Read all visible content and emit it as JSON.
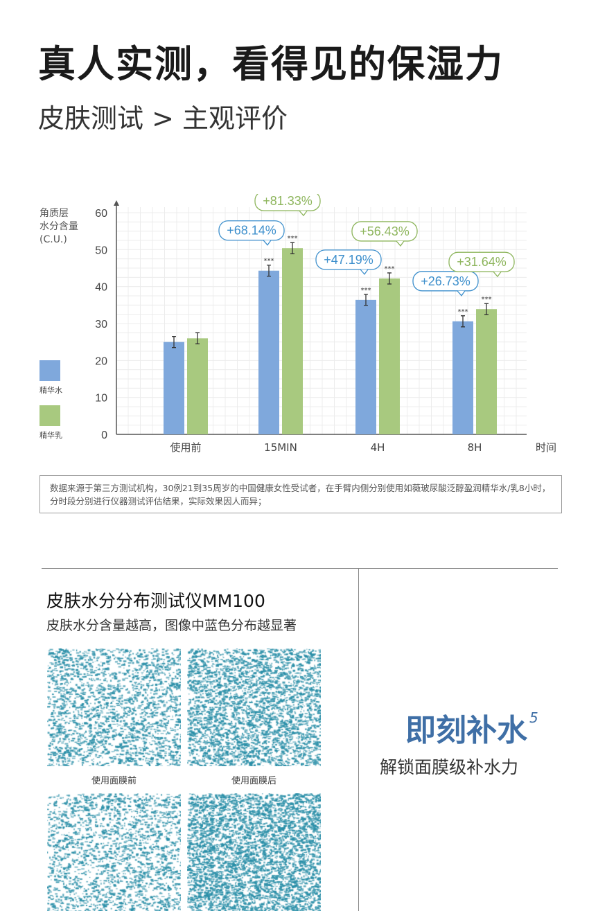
{
  "header": {
    "title": "真人实测，看得见的保湿力",
    "subtitle": "皮肤测试 > 主观评价"
  },
  "chart_data": {
    "type": "bar",
    "ylabel": "角质层\n水分含量\n(C.U.)",
    "ylabel_lines": [
      "角质层",
      "水分含量",
      "(C.U.)"
    ],
    "xlabel": "时间",
    "ylim": [
      0,
      60
    ],
    "yticks": [
      0,
      10,
      20,
      30,
      40,
      50,
      60
    ],
    "grid": true,
    "legend_placement": "left",
    "categories": [
      "使用前",
      "15MIN",
      "4H",
      "8H"
    ],
    "series": [
      {
        "name": "精华水",
        "color": "#7fa8dc",
        "values": [
          25,
          44.3,
          36.4,
          30.6
        ],
        "labels": [
          "",
          "+68.14%",
          "+47.19%",
          "+26.73%"
        ],
        "significance": [
          "",
          "***",
          "***",
          "***"
        ]
      },
      {
        "name": "精华乳",
        "color": "#a8c97f",
        "values": [
          26,
          50.4,
          42.2,
          33.9
        ],
        "labels": [
          "",
          "+81.33%",
          "+56.43%",
          "+31.64%"
        ],
        "significance": [
          "",
          "***",
          "***",
          "***"
        ]
      }
    ],
    "label_colors": {
      "精华水": "#3d8fcc",
      "精华乳": "#8db55c"
    }
  },
  "note": "数据来源于第三方测试机构，30例21到35周岁的中国健康女性受试者，在手臂内侧分别使用如薇玻尿酸泛醇盈润精华水/乳8小时，分时段分别进行仪器测试评估结果，实际效果因人而异；",
  "mm100": {
    "title": "皮肤水分分布测试仪MM100",
    "subtitle": "皮肤水分含量越高，图像中蓝色分布越显著",
    "captions": [
      "使用面膜前",
      "使用面膜后"
    ],
    "texture_color": "#2a8fa8"
  },
  "slogan": {
    "main": "即刻补水",
    "sup": "5",
    "sub": "解锁面膜级补水力",
    "color": "#3f6fa6"
  }
}
